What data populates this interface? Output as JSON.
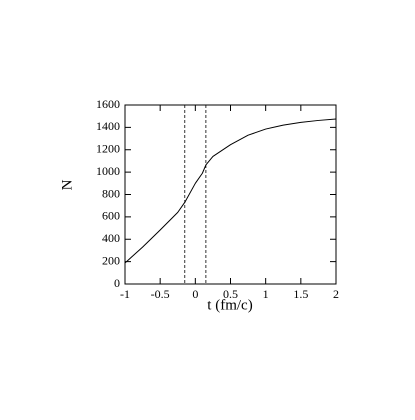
{
  "chart_data": {
    "type": "line",
    "x_label": "t (fm/c)",
    "y_label": "N",
    "x": [
      -1,
      -0.75,
      -0.5,
      -0.25,
      -0.15,
      0,
      0.1,
      0.15,
      0.25,
      0.5,
      0.75,
      1,
      1.25,
      1.5,
      1.75,
      2
    ],
    "values": [
      188,
      330,
      483,
      640,
      730,
      900,
      990,
      1064,
      1140,
      1245,
      1330,
      1385,
      1420,
      1445,
      1462,
      1475
    ],
    "color": "#000000",
    "vlines": [
      -0.15,
      0.15
    ],
    "xlim": [
      -1,
      2
    ],
    "xticks": [
      -1,
      -0.5,
      0,
      0.5,
      1,
      1.5,
      2
    ],
    "ylim": [
      0,
      1600
    ],
    "yticks": [
      0,
      200,
      400,
      600,
      800,
      1000,
      1200,
      1400,
      1600
    ]
  }
}
